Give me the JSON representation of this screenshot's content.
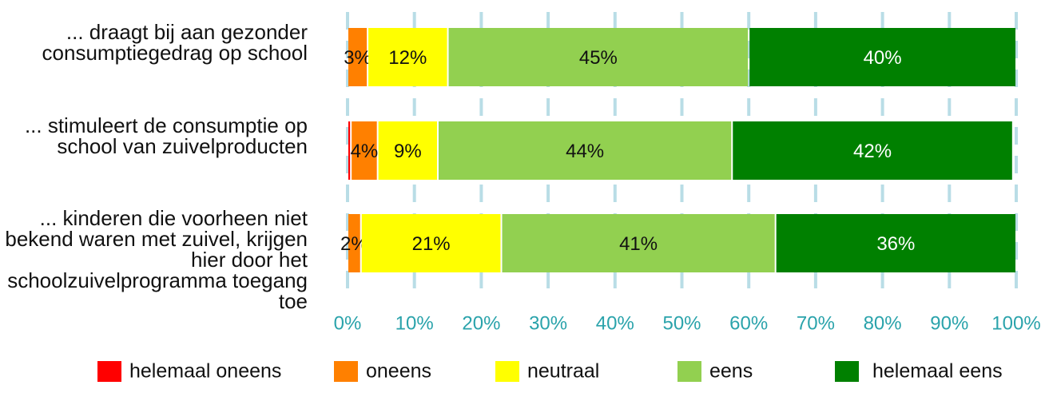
{
  "chart_data": {
    "type": "stacked-bar-horizontal",
    "categories": [
      "... draagt bij aan gezonder consumptiegedrag op school",
      "... stimuleert de consumptie op school van zuivelproducten",
      "... kinderen die voorheen niet bekend waren met zuivel, krijgen hier door het schoolzuivelprogramma toegang toe"
    ],
    "series": [
      {
        "name": "helemaal oneens",
        "color": "#ff0000",
        "values": [
          0,
          0.5,
          0
        ]
      },
      {
        "name": "oneens",
        "color": "#ff8000",
        "values": [
          3,
          4,
          2
        ],
        "value_labels": [
          "3%",
          "4%",
          "2%"
        ]
      },
      {
        "name": "neutraal",
        "color": "#ffff00",
        "values": [
          12,
          9,
          21
        ],
        "value_labels": [
          "12%",
          "9%",
          "21%"
        ]
      },
      {
        "name": "eens",
        "color": "#92d050",
        "values": [
          45,
          44,
          41
        ],
        "value_labels": [
          "45%",
          "44%",
          "41%"
        ]
      },
      {
        "name": "helemaal eens",
        "color": "#008000",
        "values": [
          40,
          42,
          36
        ],
        "value_labels": [
          "40%",
          "42%",
          "36%"
        ]
      }
    ],
    "xlim": [
      0,
      100
    ],
    "xticks": [
      {
        "value": 0,
        "label": "0%"
      },
      {
        "value": 10,
        "label": "10%"
      },
      {
        "value": 20,
        "label": "20%"
      },
      {
        "value": 30,
        "label": "30%"
      },
      {
        "value": 40,
        "label": "40%"
      },
      {
        "value": 50,
        "label": "50%"
      },
      {
        "value": 60,
        "label": "60%"
      },
      {
        "value": 70,
        "label": "70%"
      },
      {
        "value": 80,
        "label": "80%"
      },
      {
        "value": 90,
        "label": "90%"
      },
      {
        "value": 100,
        "label": "100%"
      }
    ],
    "grid": true,
    "legend": "bottom"
  }
}
